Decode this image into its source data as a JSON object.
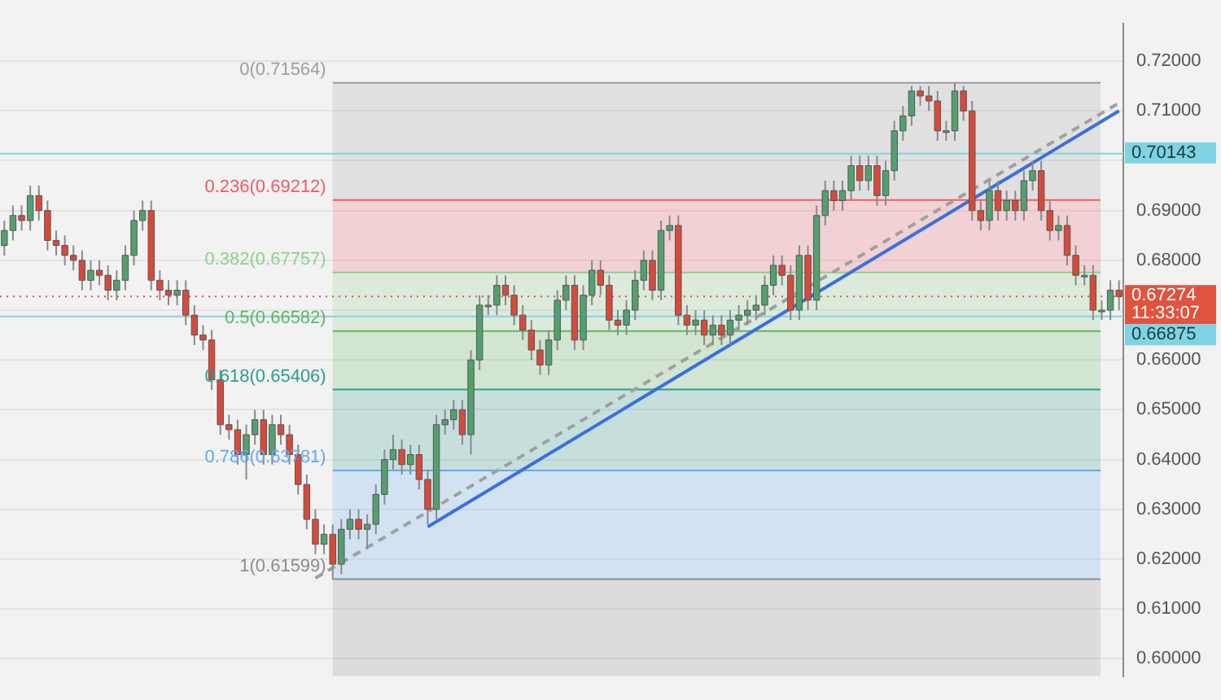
{
  "chart_data": {
    "type": "candlestick",
    "categories": [
      null,
      null,
      null,
      null,
      null,
      null,
      null,
      null,
      null,
      null,
      null,
      null,
      null,
      null,
      null,
      null,
      null,
      null,
      null,
      null,
      null,
      null,
      null,
      null,
      null,
      null,
      null,
      null,
      null,
      null,
      null,
      null,
      null,
      null,
      null,
      null,
      null,
      null,
      null,
      null,
      null,
      null,
      null,
      null,
      null,
      null,
      null,
      null,
      null,
      null,
      null,
      null,
      null,
      null,
      null,
      null,
      null,
      null,
      null,
      null,
      null,
      null,
      null,
      null,
      null,
      null,
      null,
      null,
      null,
      null,
      null,
      null,
      null,
      null,
      null,
      null,
      null,
      null,
      null,
      null,
      null,
      null,
      null,
      null,
      null,
      null,
      null,
      null,
      null,
      null,
      null,
      null,
      null,
      null,
      null,
      null,
      null,
      null,
      null,
      null,
      null,
      null,
      null,
      null,
      null,
      null,
      null,
      null,
      null,
      null,
      null,
      null,
      null,
      null,
      null,
      null,
      null,
      null,
      null,
      null,
      null,
      null,
      null,
      null,
      null,
      null,
      null,
      null,
      null,
      null
    ],
    "ohlc": [
      [
        0.683,
        0.688,
        0.681,
        0.686
      ],
      [
        0.686,
        0.691,
        0.684,
        0.689
      ],
      [
        0.689,
        0.691,
        0.686,
        0.688
      ],
      [
        0.688,
        0.695,
        0.686,
        0.693
      ],
      [
        0.693,
        0.695,
        0.688,
        0.69
      ],
      [
        0.69,
        0.692,
        0.682,
        0.684
      ],
      [
        0.684,
        0.686,
        0.681,
        0.683
      ],
      [
        0.683,
        0.685,
        0.679,
        0.681
      ],
      [
        0.681,
        0.683,
        0.678,
        0.68
      ],
      [
        0.68,
        0.682,
        0.674,
        0.676
      ],
      [
        0.676,
        0.68,
        0.674,
        0.678
      ],
      [
        0.678,
        0.68,
        0.675,
        0.677
      ],
      [
        0.677,
        0.679,
        0.672,
        0.674
      ],
      [
        0.674,
        0.678,
        0.672,
        0.676
      ],
      [
        0.676,
        0.683,
        0.674,
        0.681
      ],
      [
        0.681,
        0.69,
        0.679,
        0.688
      ],
      [
        0.688,
        0.692,
        0.686,
        0.69
      ],
      [
        0.69,
        0.692,
        0.674,
        0.676
      ],
      [
        0.676,
        0.678,
        0.672,
        0.674
      ],
      [
        0.674,
        0.676,
        0.671,
        0.673
      ],
      [
        0.673,
        0.676,
        0.671,
        0.674
      ],
      [
        0.674,
        0.676,
        0.667,
        0.669
      ],
      [
        0.669,
        0.671,
        0.663,
        0.665
      ],
      [
        0.665,
        0.667,
        0.662,
        0.664
      ],
      [
        0.664,
        0.666,
        0.654,
        0.656
      ],
      [
        0.656,
        0.658,
        0.645,
        0.647
      ],
      [
        0.647,
        0.649,
        0.644,
        0.646
      ],
      [
        0.646,
        0.648,
        0.639,
        0.641
      ],
      [
        0.641,
        0.647,
        0.636,
        0.645
      ],
      [
        0.645,
        0.65,
        0.643,
        0.648
      ],
      [
        0.648,
        0.65,
        0.639,
        0.641
      ],
      [
        0.641,
        0.649,
        0.639,
        0.647
      ],
      [
        0.647,
        0.649,
        0.643,
        0.645
      ],
      [
        0.645,
        0.647,
        0.639,
        0.641
      ],
      [
        0.641,
        0.643,
        0.633,
        0.635
      ],
      [
        0.635,
        0.637,
        0.626,
        0.628
      ],
      [
        0.628,
        0.63,
        0.621,
        0.623
      ],
      [
        0.623,
        0.627,
        0.621,
        0.625
      ],
      [
        0.625,
        0.627,
        0.61599,
        0.619
      ],
      [
        0.619,
        0.628,
        0.617,
        0.626
      ],
      [
        0.626,
        0.63,
        0.624,
        0.628
      ],
      [
        0.628,
        0.63,
        0.624,
        0.626
      ],
      [
        0.626,
        0.629,
        0.622,
        0.627
      ],
      [
        0.627,
        0.635,
        0.625,
        0.633
      ],
      [
        0.633,
        0.642,
        0.631,
        0.64
      ],
      [
        0.64,
        0.645,
        0.638,
        0.642
      ],
      [
        0.642,
        0.644,
        0.637,
        0.639
      ],
      [
        0.639,
        0.643,
        0.637,
        0.641
      ],
      [
        0.641,
        0.643,
        0.634,
        0.636
      ],
      [
        0.636,
        0.638,
        0.627,
        0.63
      ],
      [
        0.63,
        0.649,
        0.628,
        0.647
      ],
      [
        0.647,
        0.65,
        0.645,
        0.648
      ],
      [
        0.648,
        0.652,
        0.646,
        0.65
      ],
      [
        0.65,
        0.652,
        0.643,
        0.645
      ],
      [
        0.645,
        0.662,
        0.641,
        0.66
      ],
      [
        0.66,
        0.673,
        0.658,
        0.671
      ],
      [
        0.671,
        0.673,
        0.669,
        0.671
      ],
      [
        0.671,
        0.677,
        0.669,
        0.675
      ],
      [
        0.675,
        0.677,
        0.671,
        0.673
      ],
      [
        0.673,
        0.675,
        0.667,
        0.669
      ],
      [
        0.669,
        0.671,
        0.664,
        0.666
      ],
      [
        0.666,
        0.668,
        0.66,
        0.662
      ],
      [
        0.662,
        0.664,
        0.657,
        0.659
      ],
      [
        0.659,
        0.666,
        0.657,
        0.664
      ],
      [
        0.664,
        0.674,
        0.662,
        0.672
      ],
      [
        0.672,
        0.677,
        0.67,
        0.675
      ],
      [
        0.675,
        0.677,
        0.662,
        0.664
      ],
      [
        0.664,
        0.675,
        0.662,
        0.673
      ],
      [
        0.673,
        0.68,
        0.671,
        0.678
      ],
      [
        0.678,
        0.68,
        0.673,
        0.675
      ],
      [
        0.675,
        0.677,
        0.666,
        0.668
      ],
      [
        0.668,
        0.67,
        0.665,
        0.667
      ],
      [
        0.667,
        0.672,
        0.665,
        0.67
      ],
      [
        0.67,
        0.678,
        0.668,
        0.676
      ],
      [
        0.676,
        0.682,
        0.674,
        0.68
      ],
      [
        0.68,
        0.682,
        0.672,
        0.674
      ],
      [
        0.674,
        0.688,
        0.672,
        0.686
      ],
      [
        0.686,
        0.689,
        0.684,
        0.687
      ],
      [
        0.687,
        0.689,
        0.667,
        0.669
      ],
      [
        0.669,
        0.671,
        0.665,
        0.667
      ],
      [
        0.667,
        0.67,
        0.665,
        0.668
      ],
      [
        0.668,
        0.67,
        0.663,
        0.665
      ],
      [
        0.665,
        0.669,
        0.663,
        0.667
      ],
      [
        0.667,
        0.669,
        0.663,
        0.665
      ],
      [
        0.665,
        0.67,
        0.663,
        0.668
      ],
      [
        0.668,
        0.671,
        0.666,
        0.669
      ],
      [
        0.669,
        0.672,
        0.667,
        0.67
      ],
      [
        0.67,
        0.673,
        0.668,
        0.671
      ],
      [
        0.671,
        0.677,
        0.669,
        0.675
      ],
      [
        0.675,
        0.681,
        0.673,
        0.679
      ],
      [
        0.679,
        0.681,
        0.675,
        0.677
      ],
      [
        0.677,
        0.679,
        0.668,
        0.67
      ],
      [
        0.67,
        0.683,
        0.668,
        0.681
      ],
      [
        0.681,
        0.683,
        0.67,
        0.672
      ],
      [
        0.672,
        0.691,
        0.67,
        0.689
      ],
      [
        0.689,
        0.696,
        0.687,
        0.694
      ],
      [
        0.694,
        0.696,
        0.69,
        0.692
      ],
      [
        0.692,
        0.696,
        0.69,
        0.694
      ],
      [
        0.694,
        0.701,
        0.692,
        0.699
      ],
      [
        0.699,
        0.701,
        0.694,
        0.696
      ],
      [
        0.696,
        0.701,
        0.694,
        0.699
      ],
      [
        0.699,
        0.701,
        0.691,
        0.693
      ],
      [
        0.693,
        0.7,
        0.691,
        0.698
      ],
      [
        0.698,
        0.708,
        0.696,
        0.706
      ],
      [
        0.706,
        0.711,
        0.704,
        0.709
      ],
      [
        0.709,
        0.715,
        0.707,
        0.714
      ],
      [
        0.714,
        0.715,
        0.711,
        0.713
      ],
      [
        0.713,
        0.715,
        0.71,
        0.712
      ],
      [
        0.712,
        0.714,
        0.704,
        0.706
      ],
      [
        0.706,
        0.708,
        0.704,
        0.706
      ],
      [
        0.706,
        0.71564,
        0.704,
        0.714
      ],
      [
        0.714,
        0.715,
        0.708,
        0.71
      ],
      [
        0.71,
        0.712,
        0.688,
        0.69
      ],
      [
        0.69,
        0.692,
        0.686,
        0.688
      ],
      [
        0.688,
        0.696,
        0.686,
        0.694
      ],
      [
        0.694,
        0.696,
        0.688,
        0.69
      ],
      [
        0.69,
        0.694,
        0.688,
        0.692
      ],
      [
        0.692,
        0.694,
        0.688,
        0.69
      ],
      [
        0.69,
        0.698,
        0.688,
        0.696
      ],
      [
        0.696,
        0.7,
        0.694,
        0.698
      ],
      [
        0.698,
        0.7,
        0.688,
        0.69
      ],
      [
        0.69,
        0.692,
        0.684,
        0.686
      ],
      [
        0.686,
        0.689,
        0.684,
        0.687
      ],
      [
        0.687,
        0.689,
        0.679,
        0.681
      ],
      [
        0.681,
        0.683,
        0.675,
        0.677
      ],
      [
        0.677,
        0.679,
        0.675,
        0.677
      ],
      [
        0.677,
        0.679,
        0.668,
        0.67
      ],
      [
        0.67,
        0.672,
        0.668,
        0.67
      ],
      [
        0.67,
        0.676,
        0.668,
        0.674
      ],
      [
        0.674,
        0.676,
        0.67,
        0.67274
      ]
    ],
    "colors": [
      "#53a06e",
      "#53a06e",
      "#d9493a",
      "#53a06e",
      "#d9493a",
      "#d9493a",
      "#d9493a",
      "#d9493a",
      "#d9493a",
      "#d9493a",
      "#53a06e",
      "#d9493a",
      "#d9493a",
      "#53a06e",
      "#53a06e",
      "#53a06e",
      "#53a06e",
      "#d9493a",
      "#d9493a",
      "#d9493a",
      "#53a06e",
      "#d9493a",
      "#d9493a",
      "#d9493a",
      "#d9493a",
      "#d9493a",
      "#d9493a",
      "#d9493a",
      "#53a06e",
      "#53a06e",
      "#d9493a",
      "#53a06e",
      "#d9493a",
      "#d9493a",
      "#d9493a",
      "#d9493a",
      "#d9493a",
      "#53a06e",
      "#d9493a",
      "#53a06e",
      "#53a06e",
      "#d9493a",
      "#53a06e",
      "#53a06e",
      "#53a06e",
      "#53a06e",
      "#d9493a",
      "#53a06e",
      "#d9493a",
      "#d9493a",
      "#53a06e",
      "#53a06e",
      "#53a06e",
      "#d9493a",
      "#53a06e",
      "#53a06e",
      "#53a06e",
      "#53a06e",
      "#d9493a",
      "#d9493a",
      "#d9493a",
      "#d9493a",
      "#d9493a",
      "#53a06e",
      "#53a06e",
      "#53a06e",
      "#d9493a",
      "#53a06e",
      "#53a06e",
      "#d9493a",
      "#d9493a",
      "#d9493a",
      "#53a06e",
      "#53a06e",
      "#53a06e",
      "#d9493a",
      "#53a06e",
      "#53a06e",
      "#d9493a",
      "#d9493a",
      "#53a06e",
      "#d9493a",
      "#53a06e",
      "#d9493a",
      "#53a06e",
      "#53a06e",
      "#53a06e",
      "#53a06e",
      "#53a06e",
      "#53a06e",
      "#d9493a",
      "#d9493a",
      "#53a06e",
      "#d9493a",
      "#53a06e",
      "#53a06e",
      "#d9493a",
      "#53a06e",
      "#53a06e",
      "#d9493a",
      "#53a06e",
      "#d9493a",
      "#53a06e",
      "#53a06e",
      "#53a06e",
      "#53a06e",
      "#d9493a",
      "#d9493a",
      "#d9493a",
      "#53a06e",
      "#53a06e",
      "#d9493a",
      "#d9493a",
      "#d9493a",
      "#53a06e",
      "#d9493a",
      "#53a06e",
      "#d9493a",
      "#53a06e",
      "#53a06e",
      "#d9493a",
      "#d9493a",
      "#53a06e",
      "#d9493a",
      "#d9493a",
      "#53a06e",
      "#d9493a",
      "#53a06e",
      "#53a06e",
      "#d9493a"
    ],
    "series": [
      {
        "type": "line",
        "color": "#3b6fe0",
        "values": [
          null,
          null,
          null,
          null,
          null,
          null,
          null,
          null,
          null,
          null,
          null,
          null,
          null,
          null,
          null,
          null,
          null,
          null,
          null,
          null,
          null,
          null,
          null,
          null,
          null,
          null,
          null,
          null,
          null,
          null,
          null,
          null,
          null,
          null,
          null,
          null,
          null,
          null,
          null,
          null,
          null,
          null,
          null,
          null,
          null,
          null,
          null,
          null,
          null,
          0.6265,
          null,
          null,
          null,
          null,
          null,
          null,
          null,
          null,
          null,
          null,
          null,
          null,
          null,
          null,
          null,
          null,
          null,
          null,
          null,
          null,
          null,
          null,
          null,
          null,
          null,
          null,
          null,
          null,
          null,
          null,
          null,
          null,
          null,
          null,
          null,
          null,
          null,
          null,
          null,
          null,
          null,
          null,
          null,
          null,
          null,
          null,
          null,
          null,
          null,
          null,
          null,
          null,
          null,
          null,
          null,
          null,
          null,
          null,
          null,
          null,
          null,
          null,
          null,
          null,
          null,
          null,
          null,
          null,
          null,
          null,
          null,
          null,
          null,
          null,
          null,
          null,
          null,
          null,
          null,
          0.71
        ]
      },
      {
        "type": "line",
        "color": "#a0a0a0",
        "line_style": "dashed",
        "values": [
          null,
          null,
          null,
          null,
          null,
          null,
          null,
          null,
          null,
          null,
          null,
          null,
          null,
          null,
          null,
          null,
          null,
          null,
          null,
          null,
          null,
          null,
          null,
          null,
          null,
          null,
          null,
          null,
          null,
          null,
          null,
          null,
          null,
          null,
          null,
          null,
          0.6162,
          null,
          null,
          null,
          null,
          null,
          null,
          null,
          null,
          null,
          null,
          null,
          null,
          null,
          null,
          null,
          null,
          null,
          null,
          null,
          null,
          null,
          null,
          null,
          null,
          null,
          null,
          null,
          null,
          null,
          null,
          null,
          null,
          null,
          null,
          null,
          null,
          null,
          null,
          null,
          null,
          null,
          null,
          null,
          null,
          null,
          null,
          null,
          null,
          null,
          null,
          null,
          null,
          null,
          null,
          null,
          null,
          null,
          null,
          null,
          null,
          null,
          null,
          null,
          null,
          null,
          null,
          null,
          null,
          null,
          null,
          null,
          null,
          null,
          null,
          null,
          null,
          null,
          null,
          null,
          null,
          null,
          null,
          null,
          null,
          null,
          null,
          null,
          null,
          null,
          null,
          null,
          null,
          0.7116
        ]
      }
    ],
    "bands": [
      {
        "axis": "y",
        "from": 0.69212,
        "to": 0.71564,
        "label": "0(0.71564)",
        "color": "#9e9e9e"
      },
      {
        "axis": "y",
        "from": 0.67757,
        "to": 0.69212,
        "label": "0.236(0.69212)",
        "color": "#ef5b62"
      },
      {
        "axis": "y",
        "from": 0.66582,
        "to": 0.67757,
        "label": "0.382(0.67757)",
        "color": "#8fcf8f"
      },
      {
        "axis": "y",
        "from": 0.65406,
        "to": 0.66582,
        "label": "0.5(0.66582)",
        "color": "#5cb85c"
      },
      {
        "axis": "y",
        "from": 0.63781,
        "to": 0.65406,
        "label": "0.618(0.65406)",
        "color": "#2a9d8f"
      },
      {
        "axis": "y",
        "from": 0.61599,
        "to": 0.63781,
        "label": "0.786(0.63781)",
        "color": "#64a8f0"
      },
      {
        "axis": "y",
        "from": 0.5965,
        "to": 0.61599,
        "label": "1(0.61599)",
        "color": "#8c8c8c"
      }
    ],
    "ref_lines": [
      {
        "axis": "y",
        "value": 0.70143,
        "label": "0.70143",
        "color": "#7fd3e3"
      },
      {
        "axis": "y",
        "value": 0.66875,
        "label": "0.66875",
        "color": "#7fd3e3"
      },
      {
        "axis": "y",
        "value": 0.67274,
        "label": "0.67274\n11:33:07",
        "color": "#e0533f",
        "line_style": "dotted"
      }
    ],
    "ylim": [
      0.5965,
      0.7275
    ],
    "yticks": [
      {
        "value": 0.6,
        "label": "0.60000"
      },
      {
        "value": 0.61,
        "label": "0.61000"
      },
      {
        "value": 0.62,
        "label": "0.62000"
      },
      {
        "value": 0.63,
        "label": "0.63000"
      },
      {
        "value": 0.64,
        "label": "0.64000"
      },
      {
        "value": 0.65,
        "label": "0.65000"
      },
      {
        "value": 0.66,
        "label": "0.66000"
      },
      {
        "value": 0.67,
        "label": null
      },
      {
        "value": 0.68,
        "label": "0.68000"
      },
      {
        "value": 0.69,
        "label": "0.69000"
      },
      {
        "value": 0.7,
        "label": null
      },
      {
        "value": 0.71,
        "label": "0.71000"
      },
      {
        "value": 0.72,
        "label": "0.72000"
      }
    ],
    "grid": "y",
    "legend": false,
    "tick_labels": "y",
    "marker": "none"
  }
}
